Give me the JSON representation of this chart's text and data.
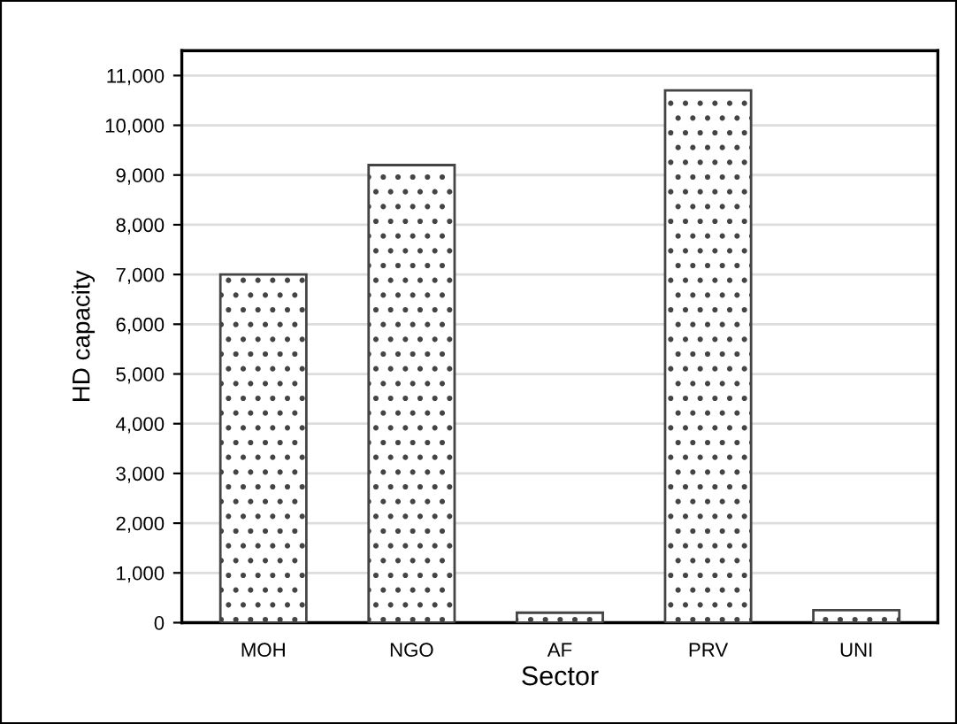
{
  "chart_data": {
    "type": "bar",
    "xlabel": "Sector",
    "ylabel": "HD capacity",
    "categories": [
      "MOH",
      "NGO",
      "AF",
      "PRV",
      "UNI"
    ],
    "values": [
      7000,
      9200,
      200,
      10700,
      250
    ],
    "color": "#444444",
    "ylim": [
      0,
      11500
    ],
    "yticks": [
      {
        "value": 0,
        "label": "0"
      },
      {
        "value": 1000,
        "label": "1,000"
      },
      {
        "value": 2000,
        "label": "2,000"
      },
      {
        "value": 3000,
        "label": "3,000"
      },
      {
        "value": 4000,
        "label": "4,000"
      },
      {
        "value": 5000,
        "label": "5,000"
      },
      {
        "value": 6000,
        "label": "6,000"
      },
      {
        "value": 7000,
        "label": "7,000"
      },
      {
        "value": 8000,
        "label": "8,000"
      },
      {
        "value": 9000,
        "label": "9,000"
      },
      {
        "value": 10000,
        "label": "10,000"
      },
      {
        "value": 11000,
        "label": "11,000"
      }
    ],
    "grid": "y",
    "legend": false
  }
}
